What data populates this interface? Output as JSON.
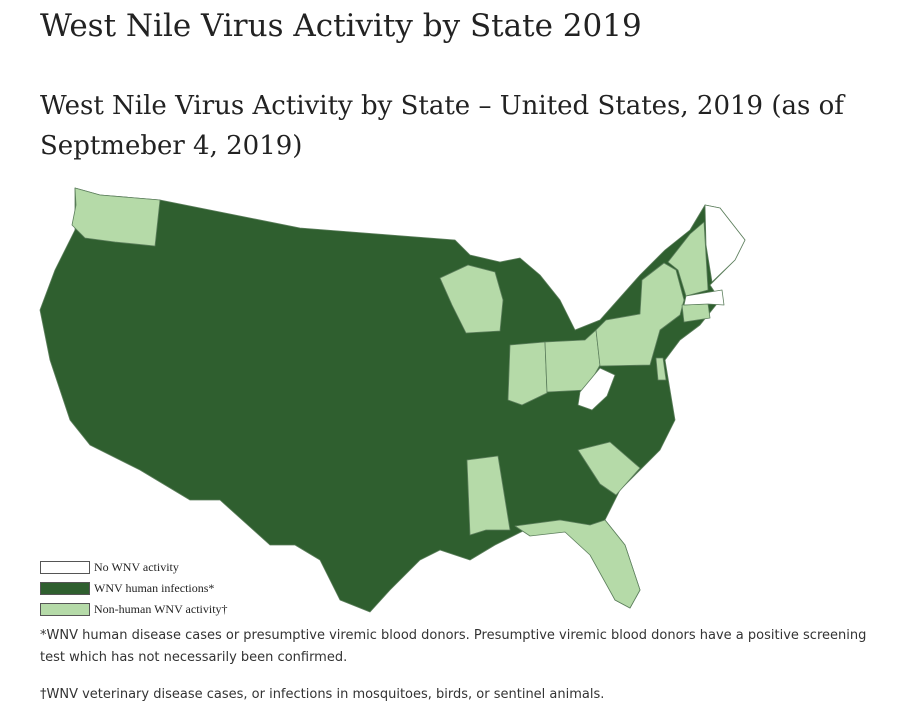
{
  "header": {
    "title": "West Nile Virus Activity by State 2019"
  },
  "map": {
    "title": "West Nile Virus Activity by State – United States, 2019 (as of Septmeber 4, 2019)",
    "legend": [
      {
        "label": "No WNV activity",
        "color": "#ffffff"
      },
      {
        "label": "WNV human infections*",
        "color": "#2f5f2f"
      },
      {
        "label": "Non-human WNV activity†",
        "color": "#b5daa8"
      }
    ]
  },
  "footnotes": [
    "*WNV human disease cases or presumptive viremic blood donors. Presumptive viremic blood donors have a positive screening test which has not necessarily been confirmed.",
    "†WNV veterinary disease cases, or infections in mosquitoes, birds, or sentinel animals."
  ]
}
